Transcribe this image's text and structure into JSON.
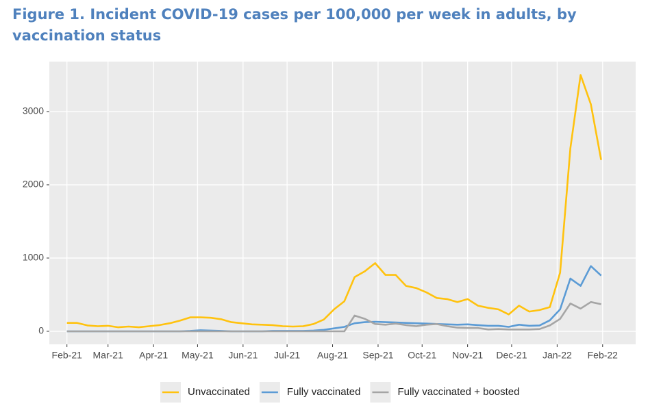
{
  "chart_data": {
    "type": "line",
    "title": "Figure 1. Incident COVID-19 cases per 100,000 per week in adults, by vaccination status",
    "x": [
      0,
      7,
      14,
      21,
      28,
      35,
      42,
      49,
      56,
      63,
      70,
      77,
      84,
      91,
      98,
      105,
      112,
      119,
      126,
      133,
      140,
      147,
      154,
      161,
      168,
      175,
      182,
      189,
      196,
      203,
      210,
      217,
      224,
      231,
      238,
      245,
      252,
      259,
      266,
      273,
      280,
      287,
      294,
      301,
      308,
      315,
      322,
      329,
      336,
      343,
      350,
      357,
      364
    ],
    "xlim": [
      -12,
      387.5
    ],
    "xticks": [
      {
        "value": 0,
        "label": "Feb-21"
      },
      {
        "value": 28,
        "label": "Mar-21"
      },
      {
        "value": 59,
        "label": "Apr-21"
      },
      {
        "value": 89,
        "label": "May-21"
      },
      {
        "value": 120,
        "label": "Jun-21"
      },
      {
        "value": 150,
        "label": "Jul-21"
      },
      {
        "value": 181,
        "label": "Aug-21"
      },
      {
        "value": 212,
        "label": "Sep-21"
      },
      {
        "value": 242,
        "label": "Oct-21"
      },
      {
        "value": 273,
        "label": "Nov-21"
      },
      {
        "value": 303,
        "label": "Dec-21"
      },
      {
        "value": 334,
        "label": "Jan-22"
      },
      {
        "value": 365,
        "label": "Feb-22"
      }
    ],
    "ylim": [
      -178,
      3682
    ],
    "yticks": [
      0,
      1000,
      2000,
      3000
    ],
    "grid": true,
    "legend": "bottom",
    "series": [
      {
        "name": "Unvaccinated",
        "color": "#ffc20e",
        "values": [
          115,
          115,
          80,
          70,
          75,
          55,
          65,
          55,
          70,
          85,
          110,
          145,
          190,
          190,
          185,
          165,
          125,
          110,
          95,
          90,
          85,
          70,
          65,
          70,
          100,
          160,
          300,
          410,
          740,
          820,
          930,
          770,
          770,
          620,
          590,
          530,
          455,
          440,
          400,
          440,
          350,
          320,
          300,
          230,
          350,
          270,
          290,
          330,
          800,
          2500,
          3500,
          3100,
          2340
        ]
      },
      {
        "name": "Fully vaccinated",
        "color": "#5b9bd5",
        "values": [
          0,
          0,
          0,
          0,
          0,
          0,
          0,
          0,
          0,
          0,
          0,
          0,
          5,
          15,
          10,
          5,
          0,
          0,
          0,
          0,
          5,
          5,
          5,
          5,
          10,
          20,
          40,
          60,
          110,
          125,
          130,
          125,
          120,
          115,
          110,
          105,
          100,
          95,
          90,
          95,
          85,
          75,
          75,
          60,
          90,
          75,
          80,
          150,
          300,
          720,
          620,
          890,
          760
        ]
      },
      {
        "name": "Fully vaccinated + boosted",
        "color": "#a5a5a5",
        "values": [
          0,
          0,
          0,
          0,
          0,
          0,
          0,
          0,
          0,
          0,
          0,
          0,
          0,
          0,
          0,
          0,
          0,
          0,
          0,
          0,
          0,
          0,
          0,
          0,
          0,
          0,
          0,
          0,
          215,
          170,
          100,
          90,
          105,
          85,
          70,
          90,
          100,
          70,
          50,
          45,
          45,
          25,
          30,
          25,
          25,
          25,
          30,
          80,
          170,
          380,
          310,
          400,
          370
        ]
      }
    ]
  }
}
